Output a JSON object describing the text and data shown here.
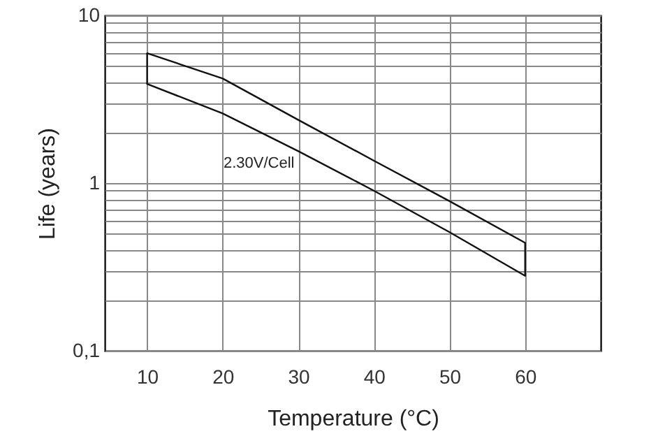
{
  "chart_data": {
    "type": "line",
    "xlabel": "Temperature (°C)",
    "ylabel": "Life (years)",
    "x": [
      10,
      20,
      30,
      40,
      50,
      60
    ],
    "series": [
      {
        "color": "#111111",
        "values": [
          5.95,
          4.2,
          2.38,
          1.36,
          0.78,
          0.44
        ],
        "errors": [
          [
            3.9,
            5.95
          ],
          null,
          null,
          null,
          null,
          [
            0.28,
            0.44
          ]
        ]
      },
      {
        "color": "#111111",
        "values": [
          3.9,
          2.6,
          1.55,
          0.9,
          0.51,
          0.28
        ]
      }
    ],
    "annotations": [
      "2.30V/Cell"
    ],
    "log": "y",
    "xlim": [
      4.4,
      70
    ],
    "xticks": [
      10,
      20,
      30,
      40,
      50,
      60
    ],
    "ylim": [
      0.1,
      10
    ],
    "yticks": [
      {
        "value": 0.1,
        "label": "0,1"
      },
      {
        "value": 0.2,
        "label": null
      },
      {
        "value": 0.3,
        "label": null
      },
      {
        "value": 0.4,
        "label": null
      },
      {
        "value": 0.5,
        "label": null
      },
      {
        "value": 0.6,
        "label": null
      },
      {
        "value": 0.7,
        "label": null
      },
      {
        "value": 0.8,
        "label": null
      },
      {
        "value": 0.9,
        "label": null
      },
      1,
      {
        "value": 2,
        "label": null
      },
      {
        "value": 3,
        "label": null
      },
      {
        "value": 4,
        "label": null
      },
      {
        "value": 5,
        "label": null
      },
      {
        "value": 6,
        "label": null
      },
      {
        "value": 7,
        "label": null
      },
      {
        "value": 8,
        "label": null
      },
      {
        "value": 9,
        "label": null
      },
      10
    ],
    "grid": true,
    "line_style": "solid"
  }
}
